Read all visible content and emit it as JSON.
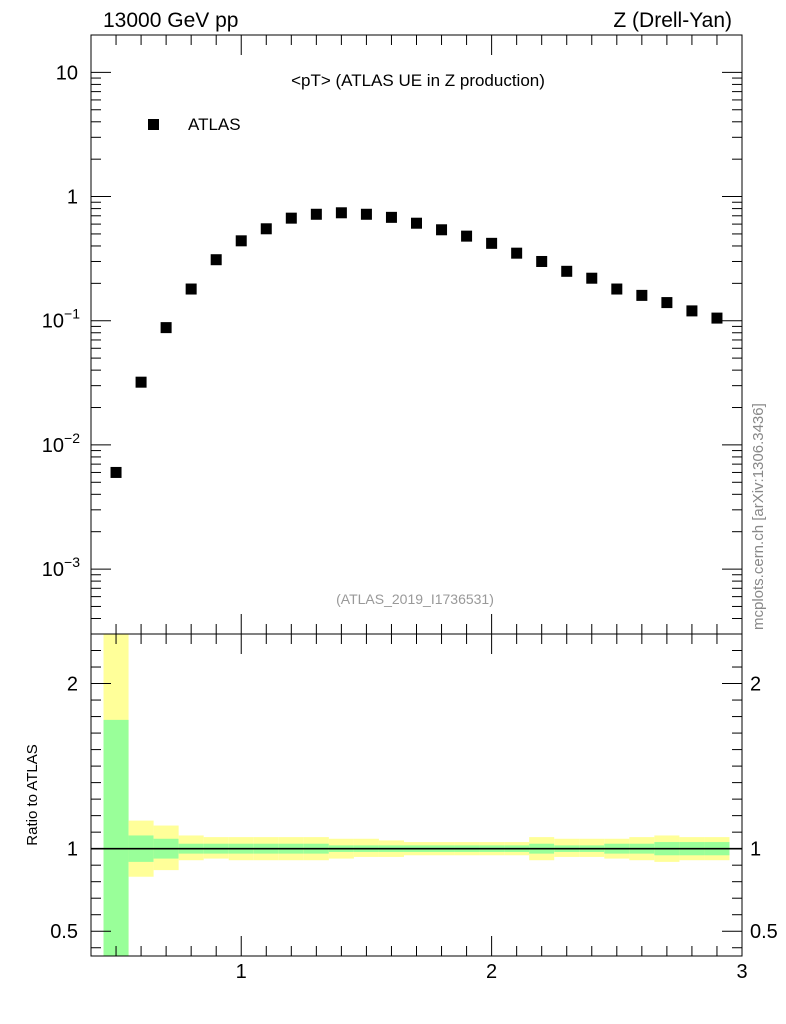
{
  "header": {
    "left": "13000 GeV pp",
    "right": "Z (Drell-Yan)"
  },
  "side_text": "mcplots.cern.ch [arXiv:1306.3436]",
  "chart_data": [
    {
      "type": "scatter",
      "title": "<pT> (ATLAS UE in Z production)",
      "subtitle": "(ATLAS_2019_I1736531)",
      "xlim": [
        0.4,
        3.0
      ],
      "ylim": [
        0.0003,
        20
      ],
      "yscale": "log",
      "y_ticks": [
        {
          "value": 10,
          "label": "10",
          "exp": ""
        },
        {
          "value": 1,
          "label": "1",
          "exp": ""
        },
        {
          "value": 0.1,
          "label": "10",
          "exp": "−1"
        },
        {
          "value": 0.01,
          "label": "10",
          "exp": "−2"
        },
        {
          "value": 0.001,
          "label": "10",
          "exp": "−3"
        }
      ],
      "legend": {
        "position": "top-left",
        "entries": [
          "ATLAS"
        ]
      },
      "series": [
        {
          "name": "ATLAS",
          "color": "#000000",
          "marker": "square",
          "x": [
            0.5,
            0.6,
            0.7,
            0.8,
            0.9,
            1.0,
            1.1,
            1.2,
            1.3,
            1.4,
            1.5,
            1.6,
            1.7,
            1.8,
            1.9,
            2.0,
            2.1,
            2.2,
            2.3,
            2.4,
            2.5,
            2.6,
            2.7,
            2.8,
            2.9
          ],
          "y": [
            0.006,
            0.032,
            0.088,
            0.18,
            0.31,
            0.44,
            0.55,
            0.67,
            0.72,
            0.74,
            0.72,
            0.68,
            0.61,
            0.54,
            0.48,
            0.42,
            0.35,
            0.3,
            0.25,
            0.22,
            0.18,
            0.16,
            0.14,
            0.12,
            0.105
          ]
        }
      ]
    },
    {
      "type": "area",
      "ylabel": "Ratio to ATLAS",
      "xlim": [
        0.4,
        3.0
      ],
      "ylim": [
        0.35,
        2.3
      ],
      "x_ticks": [
        1,
        2,
        3
      ],
      "y_ticks": [
        0.5,
        1,
        2
      ],
      "reference": 1,
      "band_colors": {
        "inner": "#99ff99",
        "outer": "#ffff99"
      },
      "bins": [
        {
          "lo": 0.45,
          "hi": 0.55,
          "g_lo": 0.35,
          "g_hi": 1.78,
          "y_lo": 0.35,
          "y_hi": 2.3
        },
        {
          "lo": 0.55,
          "hi": 0.65,
          "g_lo": 0.92,
          "g_hi": 1.08,
          "y_lo": 0.83,
          "y_hi": 1.17
        },
        {
          "lo": 0.65,
          "hi": 0.75,
          "g_lo": 0.94,
          "g_hi": 1.06,
          "y_lo": 0.87,
          "y_hi": 1.14
        },
        {
          "lo": 0.75,
          "hi": 0.85,
          "g_lo": 0.97,
          "g_hi": 1.03,
          "y_lo": 0.93,
          "y_hi": 1.08
        },
        {
          "lo": 0.85,
          "hi": 0.95,
          "g_lo": 0.97,
          "g_hi": 1.03,
          "y_lo": 0.94,
          "y_hi": 1.07
        },
        {
          "lo": 0.95,
          "hi": 1.05,
          "g_lo": 0.97,
          "g_hi": 1.03,
          "y_lo": 0.93,
          "y_hi": 1.07
        },
        {
          "lo": 1.05,
          "hi": 1.15,
          "g_lo": 0.97,
          "g_hi": 1.03,
          "y_lo": 0.93,
          "y_hi": 1.07
        },
        {
          "lo": 1.15,
          "hi": 1.25,
          "g_lo": 0.97,
          "g_hi": 1.03,
          "y_lo": 0.93,
          "y_hi": 1.07
        },
        {
          "lo": 1.25,
          "hi": 1.35,
          "g_lo": 0.97,
          "g_hi": 1.03,
          "y_lo": 0.93,
          "y_hi": 1.07
        },
        {
          "lo": 1.35,
          "hi": 1.45,
          "g_lo": 0.98,
          "g_hi": 1.02,
          "y_lo": 0.94,
          "y_hi": 1.06
        },
        {
          "lo": 1.45,
          "hi": 1.55,
          "g_lo": 0.98,
          "g_hi": 1.02,
          "y_lo": 0.95,
          "y_hi": 1.06
        },
        {
          "lo": 1.55,
          "hi": 1.65,
          "g_lo": 0.98,
          "g_hi": 1.02,
          "y_lo": 0.95,
          "y_hi": 1.05
        },
        {
          "lo": 1.65,
          "hi": 1.75,
          "g_lo": 0.98,
          "g_hi": 1.02,
          "y_lo": 0.96,
          "y_hi": 1.04
        },
        {
          "lo": 1.75,
          "hi": 1.85,
          "g_lo": 0.98,
          "g_hi": 1.02,
          "y_lo": 0.96,
          "y_hi": 1.04
        },
        {
          "lo": 1.85,
          "hi": 1.95,
          "g_lo": 0.98,
          "g_hi": 1.02,
          "y_lo": 0.96,
          "y_hi": 1.04
        },
        {
          "lo": 1.95,
          "hi": 2.05,
          "g_lo": 0.98,
          "g_hi": 1.02,
          "y_lo": 0.96,
          "y_hi": 1.04
        },
        {
          "lo": 2.05,
          "hi": 2.15,
          "g_lo": 0.98,
          "g_hi": 1.02,
          "y_lo": 0.96,
          "y_hi": 1.04
        },
        {
          "lo": 2.15,
          "hi": 2.25,
          "g_lo": 0.97,
          "g_hi": 1.03,
          "y_lo": 0.93,
          "y_hi": 1.07
        },
        {
          "lo": 2.25,
          "hi": 2.35,
          "g_lo": 0.98,
          "g_hi": 1.02,
          "y_lo": 0.95,
          "y_hi": 1.06
        },
        {
          "lo": 2.35,
          "hi": 2.45,
          "g_lo": 0.98,
          "g_hi": 1.02,
          "y_lo": 0.95,
          "y_hi": 1.06
        },
        {
          "lo": 2.45,
          "hi": 2.55,
          "g_lo": 0.97,
          "g_hi": 1.03,
          "y_lo": 0.94,
          "y_hi": 1.06
        },
        {
          "lo": 2.55,
          "hi": 2.65,
          "g_lo": 0.97,
          "g_hi": 1.03,
          "y_lo": 0.93,
          "y_hi": 1.07
        },
        {
          "lo": 2.65,
          "hi": 2.75,
          "g_lo": 0.96,
          "g_hi": 1.04,
          "y_lo": 0.92,
          "y_hi": 1.08
        },
        {
          "lo": 2.75,
          "hi": 2.85,
          "g_lo": 0.96,
          "g_hi": 1.04,
          "y_lo": 0.93,
          "y_hi": 1.07
        },
        {
          "lo": 2.85,
          "hi": 2.95,
          "g_lo": 0.96,
          "g_hi": 1.04,
          "y_lo": 0.93,
          "y_hi": 1.07
        }
      ]
    }
  ]
}
